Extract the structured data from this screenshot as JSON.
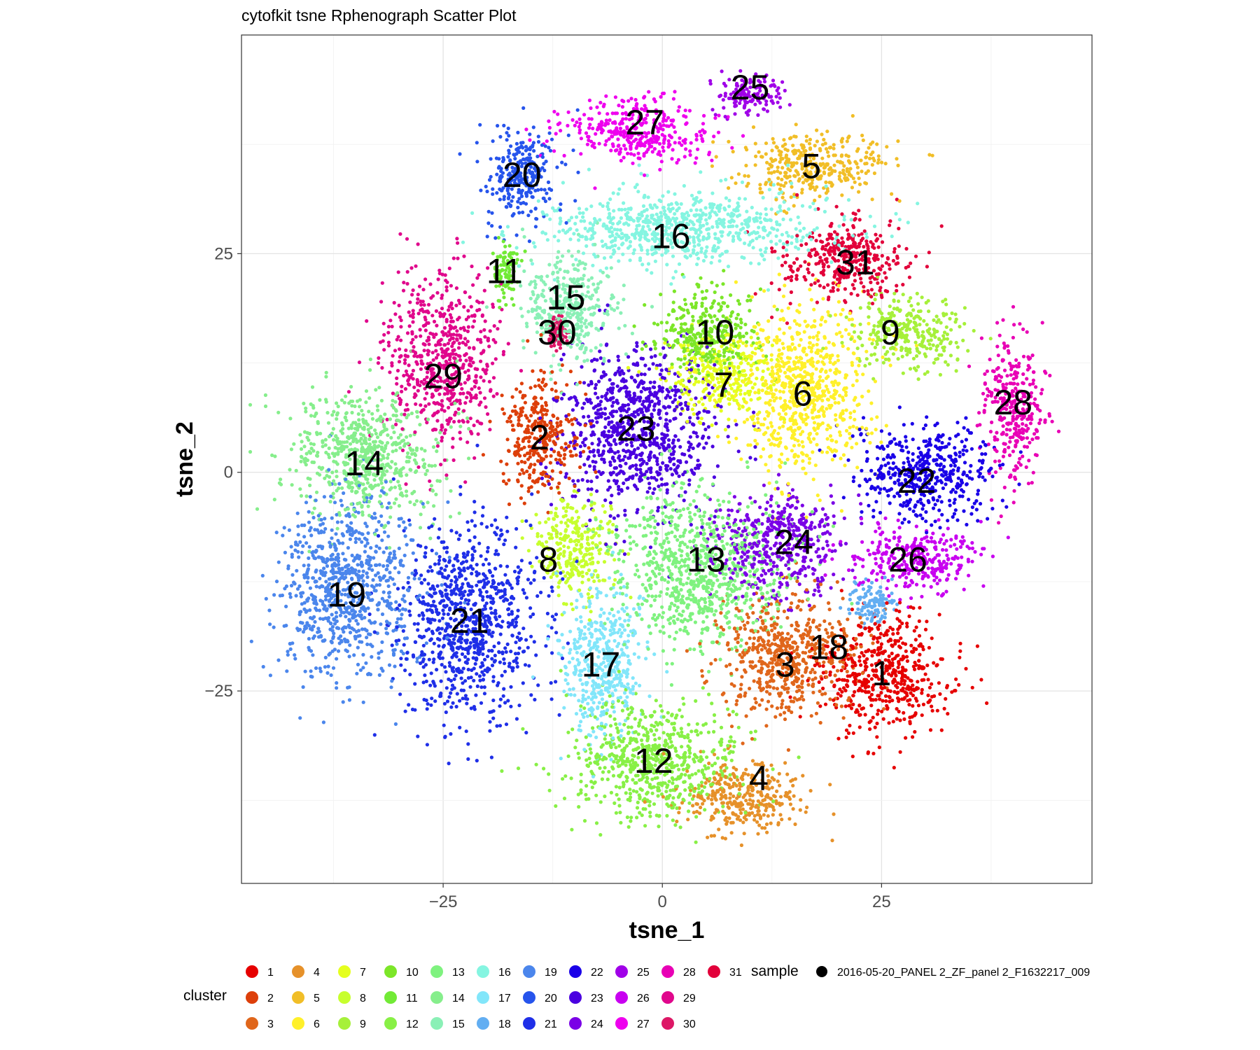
{
  "chart_data": {
    "type": "scatter",
    "title": "cytofkit tsne Rphenograph Scatter Plot",
    "xlabel": "tsne_1",
    "ylabel": "tsne_2",
    "xlim": [
      -48,
      49
    ],
    "ylim": [
      -47,
      50
    ],
    "xticks": [
      -25,
      0,
      25
    ],
    "xtick_labels": [
      "−25",
      "0",
      "25"
    ],
    "yticks": [
      -25,
      0,
      25
    ],
    "ytick_labels": [
      "−25",
      "0",
      "25"
    ],
    "grid": true,
    "legend_position": "bottom",
    "cluster_legend_title": "cluster",
    "sample_legend_title": "sample",
    "sample_entries": [
      {
        "label": "2016-05-20_PANEL 2_ZF_panel 2_F1632217_009",
        "color": "#000000"
      }
    ],
    "clusters": [
      {
        "id": "1",
        "color": "#E60000",
        "x": 25,
        "y": -23,
        "sx": 6.0,
        "sy": 5.5
      },
      {
        "id": "2",
        "color": "#DD3F0A",
        "x": -14,
        "y": 4,
        "sx": 3.5,
        "sy": 5.5
      },
      {
        "id": "3",
        "color": "#E0661B",
        "x": 14,
        "y": -21,
        "sx": 6.5,
        "sy": 5.5
      },
      {
        "id": "4",
        "color": "#E6912A",
        "x": 9,
        "y": -37,
        "sx": 5.5,
        "sy": 3.5
      },
      {
        "id": "5",
        "color": "#F1BE27",
        "x": 17,
        "y": 35,
        "sx": 7.0,
        "sy": 3.0
      },
      {
        "id": "6",
        "color": "#FFF02A",
        "x": 16,
        "y": 9,
        "sx": 6.0,
        "sy": 8.0
      },
      {
        "id": "7",
        "color": "#E5FF1E",
        "x": 7,
        "y": 11,
        "sx": 5.0,
        "sy": 4.0
      },
      {
        "id": "8",
        "color": "#C7FF2E",
        "x": -10,
        "y": -9,
        "sx": 3.5,
        "sy": 5.0
      },
      {
        "id": "9",
        "color": "#A6F03A",
        "x": 28,
        "y": 16,
        "sx": 5.0,
        "sy": 3.5
      },
      {
        "id": "10",
        "color": "#7CE629",
        "x": 5,
        "y": 16,
        "sx": 5.0,
        "sy": 4.0
      },
      {
        "id": "11",
        "color": "#72EA36",
        "x": -18,
        "y": 23,
        "sx": 1.2,
        "sy": 2.5
      },
      {
        "id": "12",
        "color": "#88F046",
        "x": -1,
        "y": -33,
        "sx": 8.0,
        "sy": 5.5
      },
      {
        "id": "13",
        "color": "#7FF27F",
        "x": 4,
        "y": -11,
        "sx": 8.0,
        "sy": 7.0
      },
      {
        "id": "14",
        "color": "#86EE8C",
        "x": -34,
        "y": 2,
        "sx": 7.0,
        "sy": 6.0
      },
      {
        "id": "15",
        "color": "#8AF0B6",
        "x": -11,
        "y": 19,
        "sx": 4.5,
        "sy": 5.0
      },
      {
        "id": "16",
        "color": "#85F5E1",
        "x": 2,
        "y": 28,
        "sx": 14.0,
        "sy": 3.5
      },
      {
        "id": "17",
        "color": "#82E6FA",
        "x": -7,
        "y": -22,
        "sx": 4.0,
        "sy": 7.0
      },
      {
        "id": "18",
        "color": "#62AEF2",
        "x": 24,
        "y": -15,
        "sx": 2.0,
        "sy": 2.0
      },
      {
        "id": "19",
        "color": "#4B86EC",
        "x": -36,
        "y": -13,
        "sx": 6.5,
        "sy": 8.5
      },
      {
        "id": "20",
        "color": "#2654EC",
        "x": -16,
        "y": 34,
        "sx": 3.5,
        "sy": 4.5
      },
      {
        "id": "21",
        "color": "#1F2FE8",
        "x": -22,
        "y": -17,
        "sx": 6.5,
        "sy": 9.0
      },
      {
        "id": "22",
        "color": "#1A00E8",
        "x": 30,
        "y": 0,
        "sx": 6.5,
        "sy": 4.5
      },
      {
        "id": "23",
        "color": "#4A00E0",
        "x": -3,
        "y": 5,
        "sx": 7.5,
        "sy": 7.5
      },
      {
        "id": "24",
        "color": "#7A00E6",
        "x": 13,
        "y": -8,
        "sx": 6.0,
        "sy": 5.0
      },
      {
        "id": "25",
        "color": "#A000E8",
        "x": 10,
        "y": 43,
        "sx": 3.0,
        "sy": 2.0
      },
      {
        "id": "26",
        "color": "#C800F0",
        "x": 29,
        "y": -10,
        "sx": 6.0,
        "sy": 3.0
      },
      {
        "id": "27",
        "color": "#EE00EE",
        "x": -3,
        "y": 39,
        "sx": 7.0,
        "sy": 3.0
      },
      {
        "id": "28",
        "color": "#E800B5",
        "x": 40,
        "y": 7,
        "sx": 3.0,
        "sy": 6.5
      },
      {
        "id": "29",
        "color": "#E0078C",
        "x": -25,
        "y": 13,
        "sx": 5.0,
        "sy": 8.0
      },
      {
        "id": "30",
        "color": "#DD1766",
        "x": -12,
        "y": 16,
        "sx": 1.0,
        "sy": 1.5
      },
      {
        "id": "31",
        "color": "#E2003A",
        "x": 21,
        "y": 24,
        "sx": 5.5,
        "sy": 4.0
      }
    ],
    "cluster_labels": [
      {
        "text": "25",
        "x": 10,
        "y": 44
      },
      {
        "text": "27",
        "x": -2,
        "y": 40
      },
      {
        "text": "5",
        "x": 17,
        "y": 35
      },
      {
        "text": "20",
        "x": -16,
        "y": 34
      },
      {
        "text": "16",
        "x": 1,
        "y": 27
      },
      {
        "text": "31",
        "x": 22,
        "y": 24
      },
      {
        "text": "11",
        "x": -18,
        "y": 23
      },
      {
        "text": "15",
        "x": -11,
        "y": 20
      },
      {
        "text": "30",
        "x": -12,
        "y": 16
      },
      {
        "text": "10",
        "x": 6,
        "y": 16
      },
      {
        "text": "9",
        "x": 26,
        "y": 16
      },
      {
        "text": "29",
        "x": -25,
        "y": 11
      },
      {
        "text": "7",
        "x": 7,
        "y": 10
      },
      {
        "text": "6",
        "x": 16,
        "y": 9
      },
      {
        "text": "28",
        "x": 40,
        "y": 8
      },
      {
        "text": "23",
        "x": -3,
        "y": 5
      },
      {
        "text": "2",
        "x": -14,
        "y": 4
      },
      {
        "text": "14",
        "x": -34,
        "y": 1
      },
      {
        "text": "22",
        "x": 29,
        "y": -1
      },
      {
        "text": "24",
        "x": 15,
        "y": -8
      },
      {
        "text": "8",
        "x": -13,
        "y": -10
      },
      {
        "text": "13",
        "x": 5,
        "y": -10
      },
      {
        "text": "26",
        "x": 28,
        "y": -10
      },
      {
        "text": "19",
        "x": -36,
        "y": -14
      },
      {
        "text": "21",
        "x": -22,
        "y": -17
      },
      {
        "text": "18",
        "x": 19,
        "y": -20
      },
      {
        "text": "3",
        "x": 14,
        "y": -22
      },
      {
        "text": "17",
        "x": -7,
        "y": -22
      },
      {
        "text": "1",
        "x": 25,
        "y": -23
      },
      {
        "text": "12",
        "x": -1,
        "y": -33
      },
      {
        "text": "4",
        "x": 11,
        "y": -35
      }
    ]
  }
}
